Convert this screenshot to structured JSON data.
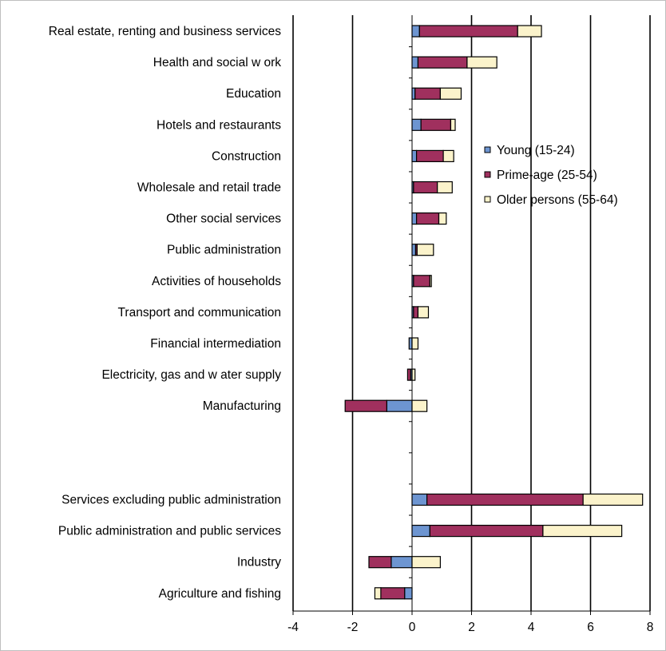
{
  "chart_data": {
    "type": "bar",
    "orientation": "horizontal",
    "stacked": true,
    "categories": [
      "Real estate, renting and business services",
      "Health and social w ork",
      "Education",
      "Hotels and restaurants",
      "Construction",
      "Wholesale and retail trade",
      "Other social services",
      "Public administration",
      "Activities of households",
      "Transport and communication",
      "Financial intermediation",
      "Electricity, gas and w ater supply",
      "Manufacturing",
      "",
      "",
      "Services excluding public administration",
      "Public administration and public services",
      "Industry",
      "Agriculture and fishing"
    ],
    "series": [
      {
        "name": "Young (15-24)",
        "color": "#6d95d1",
        "values": [
          0.25,
          0.2,
          0.1,
          0.3,
          0.15,
          0.05,
          0.15,
          0.12,
          0.05,
          0.05,
          -0.1,
          -0.05,
          -0.85,
          null,
          null,
          0.5,
          0.6,
          -0.7,
          -0.25
        ]
      },
      {
        "name": "Prime-age (25-54)",
        "color": "#a0305e",
        "values": [
          3.3,
          1.65,
          0.85,
          1.0,
          0.9,
          0.8,
          0.75,
          0.05,
          0.55,
          0.15,
          0.0,
          -0.1,
          -1.4,
          null,
          null,
          5.25,
          3.8,
          -0.75,
          -0.8
        ]
      },
      {
        "name": "Older persons (55-64)",
        "color": "#fbf3cb",
        "values": [
          0.8,
          1.0,
          0.7,
          0.15,
          0.35,
          0.5,
          0.25,
          0.55,
          0.05,
          0.35,
          0.2,
          0.1,
          0.5,
          null,
          null,
          2.0,
          2.65,
          0.95,
          -0.2
        ]
      }
    ],
    "xlim": [
      -4,
      8
    ],
    "xticks": [
      -4,
      -2,
      0,
      2,
      4,
      6,
      8
    ],
    "grid": "vertical major gridlines",
    "legend": "right, inside plot",
    "title": "",
    "xlabel": "",
    "ylabel": ""
  }
}
